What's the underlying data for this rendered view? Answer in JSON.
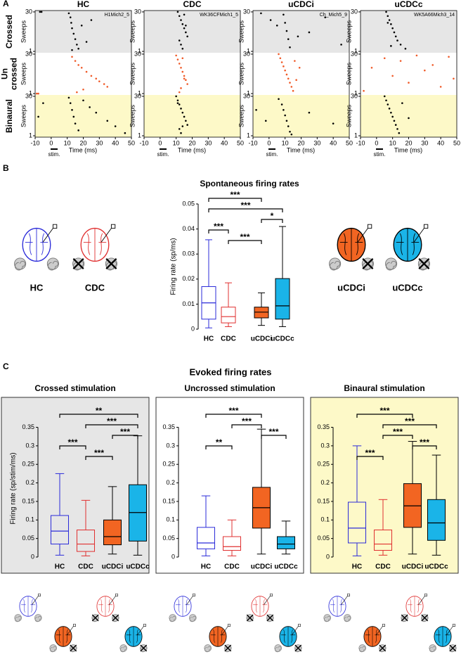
{
  "figure": {
    "panel_labels": [
      "A",
      "B",
      "C"
    ],
    "row_labels": [
      [
        "Crossed"
      ],
      [
        "Un",
        "crossed"
      ],
      [
        "Binaural"
      ]
    ],
    "evoked_title": "Evoked firing rates",
    "icon_labels": [
      "HC",
      "CDC",
      "uCDCi",
      "uCDCc"
    ]
  },
  "chart_data": [
    {
      "type": "raster",
      "title": "HC",
      "recording": "H1Mich2_5",
      "xlim": [
        -10,
        50
      ],
      "xticks": [
        -10,
        0,
        10,
        20,
        30,
        40,
        50
      ],
      "ylim": [
        0,
        31
      ],
      "yticks": [
        1,
        30
      ],
      "ylabel": "Sweeps",
      "xlabel": "Time (ms)",
      "stim_label": "stim.",
      "sections": [
        {
          "color": "#000000",
          "background": "#e6e6e6",
          "x": [
            -7,
            -6,
            11,
            12,
            12.5,
            13,
            14,
            15,
            16,
            17,
            19,
            22,
            25,
            13
          ],
          "y": [
            30,
            30,
            29,
            26,
            22,
            18,
            14,
            10,
            6,
            3,
            20,
            8,
            24,
            2
          ]
        },
        {
          "color": "#f05a28",
          "background": "#ffffff",
          "x": [
            -9,
            -8,
            13,
            15,
            17,
            19,
            22,
            25,
            28,
            30,
            33,
            35,
            20,
            16
          ],
          "y": [
            1,
            1,
            28,
            25,
            22,
            20,
            17,
            14,
            12,
            10,
            8,
            6,
            4,
            2
          ]
        },
        {
          "color": "#000000",
          "background": "#fdf9c8",
          "x": [
            -8,
            11,
            12,
            13,
            14,
            15,
            17,
            20,
            24,
            28,
            35,
            40,
            46,
            -5
          ],
          "y": [
            15,
            29,
            25,
            20,
            15,
            10,
            5,
            27,
            22,
            18,
            12,
            8,
            3,
            25
          ]
        }
      ]
    },
    {
      "type": "raster",
      "title": "CDC",
      "recording": "WK36CFMich1_5",
      "xlim": [
        -10,
        50
      ],
      "xticks": [
        -10,
        0,
        10,
        20,
        30,
        40,
        50
      ],
      "ylim": [
        0,
        31
      ],
      "yticks": [
        1,
        30
      ],
      "ylabel": "Sweeps",
      "xlabel": "Time (ms)",
      "stim_label": "stim.",
      "sections": [
        {
          "color": "#000000",
          "background": "#e6e6e6",
          "x": [
            11,
            12,
            13,
            14,
            15,
            16,
            17,
            12,
            13,
            14,
            15,
            16
          ],
          "y": [
            30,
            27,
            24,
            21,
            18,
            15,
            12,
            9,
            6,
            3,
            28,
            20
          ]
        },
        {
          "color": "#f05a28",
          "background": "#ffffff",
          "x": [
            10,
            11,
            12,
            13,
            14,
            15,
            16,
            17,
            13,
            12,
            14,
            15
          ],
          "y": [
            29,
            26,
            23,
            20,
            17,
            14,
            11,
            8,
            5,
            2,
            27,
            12
          ]
        },
        {
          "color": "#000000",
          "background": "#fdf9c8",
          "x": [
            10,
            11,
            12,
            13,
            14,
            15,
            16,
            17,
            12,
            13,
            11,
            14
          ],
          "y": [
            30,
            27,
            24,
            21,
            18,
            15,
            12,
            9,
            6,
            3,
            25,
            8
          ]
        }
      ]
    },
    {
      "type": "raster",
      "title": "uCDCi",
      "recording": "Ch_Mich5_9",
      "xlim": [
        -10,
        50
      ],
      "xticks": [
        -10,
        0,
        10,
        20,
        30,
        40,
        50
      ],
      "ylim": [
        0,
        31
      ],
      "yticks": [
        1,
        30
      ],
      "ylabel": "Sweeps",
      "xlabel": "Time (ms)",
      "stim_label": "stim.",
      "sections": [
        {
          "color": "#000000",
          "background": "#e6e6e6",
          "x": [
            -5,
            1,
            5,
            9,
            10,
            11,
            12,
            13,
            25,
            35,
            45,
            18
          ],
          "y": [
            29,
            24,
            20,
            28,
            22,
            16,
            10,
            4,
            15,
            26,
            6,
            12
          ]
        },
        {
          "color": "#f05a28",
          "background": "#ffffff",
          "x": [
            6,
            7,
            8,
            9,
            10,
            11,
            12,
            13,
            14,
            15,
            16,
            17,
            19
          ],
          "y": [
            30,
            27,
            24,
            21,
            18,
            15,
            12,
            9,
            6,
            3,
            25,
            11,
            20
          ]
        },
        {
          "color": "#000000",
          "background": "#fdf9c8",
          "x": [
            -8,
            -2,
            6,
            8,
            9,
            10,
            11,
            12,
            13,
            14,
            25,
            40
          ],
          "y": [
            20,
            12,
            28,
            24,
            20,
            16,
            12,
            8,
            4,
            2,
            18,
            10
          ]
        }
      ]
    },
    {
      "type": "raster",
      "title": "uCDCc",
      "recording": "WK5A66Mich3_14",
      "xlim": [
        -10,
        50
      ],
      "xticks": [
        -10,
        0,
        10,
        20,
        30,
        40,
        50
      ],
      "ylim": [
        0,
        31
      ],
      "yticks": [
        1,
        30
      ],
      "ylabel": "Sweeps",
      "xlabel": "Time (ms)",
      "stim_label": "stim.",
      "sections": [
        {
          "color": "#000000",
          "background": "#e6e6e6",
          "x": [
            6,
            7,
            8,
            9,
            10,
            11,
            12,
            13,
            15,
            18,
            7,
            9
          ],
          "y": [
            30,
            27,
            24,
            21,
            18,
            15,
            12,
            9,
            6,
            3,
            22,
            5
          ]
        },
        {
          "color": "#f05a28",
          "background": "#ffffff",
          "x": [
            -8,
            -3,
            5,
            10,
            15,
            20,
            25,
            30,
            35,
            40,
            45,
            48
          ],
          "y": [
            3,
            20,
            27,
            14,
            25,
            9,
            29,
            18,
            22,
            6,
            28,
            12
          ]
        },
        {
          "color": "#000000",
          "background": "#fdf9c8",
          "x": [
            5,
            6,
            7,
            8,
            9,
            10,
            11,
            12,
            13,
            14,
            16,
            20
          ],
          "y": [
            30,
            27,
            24,
            21,
            18,
            15,
            12,
            9,
            6,
            3,
            25,
            14
          ]
        }
      ]
    },
    {
      "type": "box",
      "title": "Spontaneous firing rates",
      "ylabel": "Firing rate (sp/ms)",
      "ylim": [
        0,
        0.05
      ],
      "yticks": [
        0,
        0.01,
        0.02,
        0.03,
        0.04,
        0.05
      ],
      "series": [
        {
          "name": "HC",
          "color": "#2b2bd9",
          "fill": "none",
          "values": [
            0.0005,
            0.004,
            0.0105,
            0.017,
            0.0357
          ]
        },
        {
          "name": "CDC",
          "color": "#e03030",
          "fill": "none",
          "values": [
            0.001,
            0.0025,
            0.005,
            0.0088,
            0.0185
          ]
        },
        {
          "name": "uCDCi",
          "color": "#000000",
          "fill": "#f26522",
          "values": [
            0.0015,
            0.0045,
            0.0068,
            0.0088,
            0.0145
          ]
        },
        {
          "name": "uCDCc",
          "color": "#000000",
          "fill": "#1ab4e8",
          "values": [
            0.001,
            0.004,
            0.0093,
            0.0202,
            0.041
          ]
        }
      ],
      "brackets": [
        {
          "from": "HC",
          "to": "uCDCi",
          "label": "***"
        },
        {
          "from": "HC",
          "to": "uCDCc",
          "label": "***"
        },
        {
          "from": "uCDCi",
          "to": "uCDCc",
          "label": "*"
        },
        {
          "from": "HC",
          "to": "CDC",
          "label": "***"
        },
        {
          "from": "CDC",
          "to": "uCDCi",
          "label": "***"
        }
      ]
    },
    {
      "type": "box",
      "title": "Crossed stimulation",
      "ylabel": "Firing rate (sp/stim/ms)",
      "background": "#e6e6e6",
      "ylim": [
        0,
        0.37
      ],
      "yticks": [
        0,
        0.05,
        0.1,
        0.15,
        0.2,
        0.25,
        0.3,
        0.35
      ],
      "series": [
        {
          "name": "HC",
          "color": "#2b2bd9",
          "fill": "none",
          "values": [
            0.005,
            0.035,
            0.07,
            0.112,
            0.225
          ]
        },
        {
          "name": "CDC",
          "color": "#e03030",
          "fill": "none",
          "values": [
            0.003,
            0.015,
            0.035,
            0.073,
            0.153
          ]
        },
        {
          "name": "uCDCi",
          "color": "#000000",
          "fill": "#f26522",
          "values": [
            0.008,
            0.033,
            0.055,
            0.1,
            0.19
          ]
        },
        {
          "name": "uCDCc",
          "color": "#000000",
          "fill": "#1ab4e8",
          "values": [
            0.005,
            0.043,
            0.12,
            0.195,
            0.327
          ]
        }
      ],
      "brackets": [
        {
          "from": "HC",
          "to": "uCDCc",
          "label": "**"
        },
        {
          "from": "CDC",
          "to": "uCDCc",
          "label": "***"
        },
        {
          "from": "uCDCi",
          "to": "uCDCc",
          "label": "***"
        },
        {
          "from": "HC",
          "to": "CDC",
          "label": "***"
        },
        {
          "from": "CDC",
          "to": "uCDCi",
          "label": "***"
        }
      ]
    },
    {
      "type": "box",
      "title": "Uncrossed stimulation",
      "background": "#ffffff",
      "ylim": [
        0,
        0.37
      ],
      "yticks": [
        0,
        0.05,
        0.1,
        0.15,
        0.2,
        0.25,
        0.3,
        0.35
      ],
      "series": [
        {
          "name": "HC",
          "color": "#2b2bd9",
          "fill": "none",
          "values": [
            0.003,
            0.022,
            0.038,
            0.08,
            0.165
          ]
        },
        {
          "name": "CDC",
          "color": "#e03030",
          "fill": "none",
          "values": [
            0.003,
            0.018,
            0.028,
            0.055,
            0.1
          ]
        },
        {
          "name": "uCDCi",
          "color": "#000000",
          "fill": "#f26522",
          "values": [
            0.008,
            0.078,
            0.133,
            0.188,
            0.345
          ]
        },
        {
          "name": "uCDCc",
          "color": "#000000",
          "fill": "#1ab4e8",
          "values": [
            0.008,
            0.022,
            0.035,
            0.055,
            0.097
          ]
        }
      ],
      "brackets": [
        {
          "from": "HC",
          "to": "uCDCi",
          "label": "***"
        },
        {
          "from": "CDC",
          "to": "uCDCi",
          "label": "***"
        },
        {
          "from": "uCDCi",
          "to": "uCDCc",
          "label": "***"
        },
        {
          "from": "HC",
          "to": "CDC",
          "label": "**"
        }
      ]
    },
    {
      "type": "box",
      "title": "Binaural stimulation",
      "background": "#fdf9c8",
      "ylim": [
        0,
        0.37
      ],
      "yticks": [
        0,
        0.05,
        0.1,
        0.15,
        0.2,
        0.25,
        0.3,
        0.35
      ],
      "series": [
        {
          "name": "HC",
          "color": "#2b2bd9",
          "fill": "none",
          "values": [
            0.003,
            0.038,
            0.078,
            0.148,
            0.3
          ]
        },
        {
          "name": "CDC",
          "color": "#e03030",
          "fill": "none",
          "values": [
            0.005,
            0.018,
            0.035,
            0.073,
            0.155
          ]
        },
        {
          "name": "uCDCi",
          "color": "#000000",
          "fill": "#f26522",
          "values": [
            0.008,
            0.08,
            0.138,
            0.198,
            0.312
          ]
        },
        {
          "name": "uCDCc",
          "color": "#000000",
          "fill": "#1ab4e8",
          "values": [
            0.005,
            0.045,
            0.092,
            0.155,
            0.275
          ]
        }
      ],
      "brackets": [
        {
          "from": "HC",
          "to": "uCDCi",
          "label": "***"
        },
        {
          "from": "CDC",
          "to": "uCDCc",
          "label": "***"
        },
        {
          "from": "CDC",
          "to": "uCDCi",
          "label": "***"
        },
        {
          "from": "uCDCi",
          "to": "uCDCc",
          "label": "***"
        },
        {
          "from": "HC",
          "to": "CDC",
          "label": "***"
        }
      ]
    }
  ]
}
